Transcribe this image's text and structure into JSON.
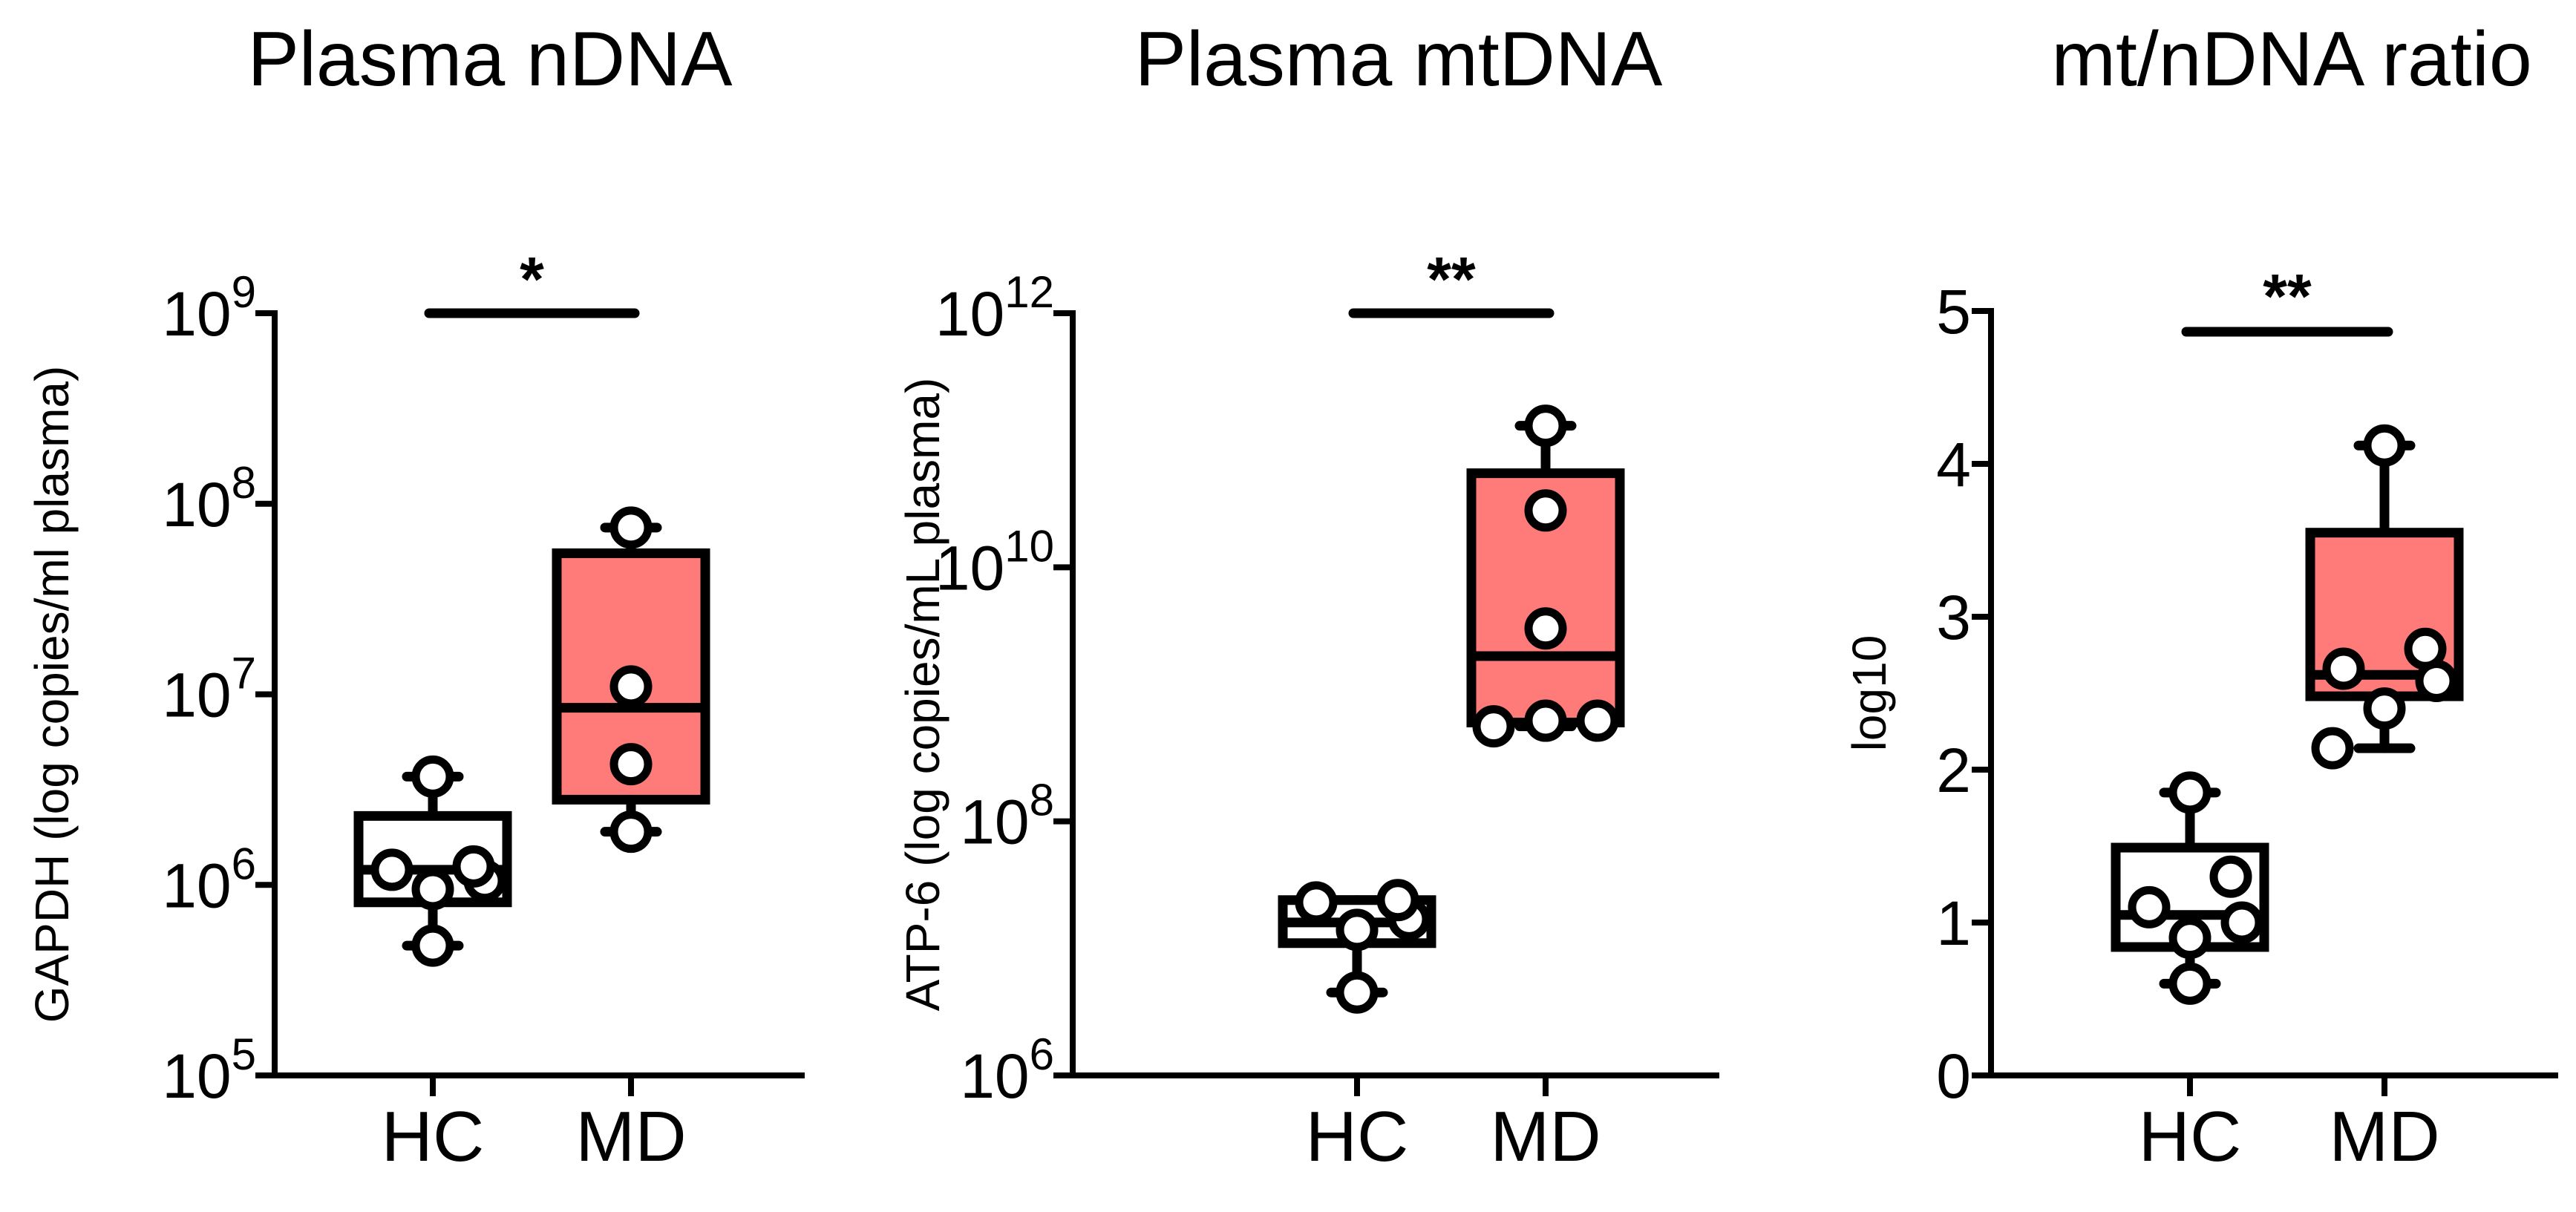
{
  "figure": {
    "colors": {
      "HC_fill": "#ffffff",
      "MD_fill": "#fe7b79",
      "stroke": "#000000",
      "point_fill": "#ffffff"
    }
  },
  "chart_data": [
    {
      "type": "box",
      "title": "Plasma nDNA",
      "ylabel": "GAPDH (log copies/ml plasma)",
      "xlabel": "",
      "yscale": "log",
      "ylim": [
        100000,
        1000000000
      ],
      "yticks": [
        {
          "value": 100000,
          "base": "10",
          "exp": "5"
        },
        {
          "value": 1000000,
          "base": "10",
          "exp": "6"
        },
        {
          "value": 10000000,
          "base": "10",
          "exp": "7"
        },
        {
          "value": 100000000,
          "base": "10",
          "exp": "8"
        },
        {
          "value": 1000000000,
          "base": "10",
          "exp": "9"
        }
      ],
      "categories": [
        "HC",
        "MD"
      ],
      "groups": [
        {
          "name": "HC",
          "min": 480000,
          "q1": 810000,
          "median": 1200000,
          "q3": 2300000,
          "max": 3700000,
          "points": [
            480000,
            950000,
            1050000,
            1200000,
            1250000,
            3700000
          ]
        },
        {
          "name": "MD",
          "min": 1900000,
          "q1": 2800000,
          "median": 8500000,
          "q3": 55000000,
          "max": 75000000,
          "points": [
            1900000,
            4300000,
            11000000,
            75000000
          ]
        }
      ],
      "significance": {
        "from": "HC",
        "to": "MD",
        "label": "*"
      }
    },
    {
      "type": "box",
      "title": "Plasma mtDNA",
      "ylabel": "ATP-6 (log copies/mL plasma)",
      "xlabel": "",
      "yscale": "log",
      "ylim": [
        1000000,
        1000000000000
      ],
      "yticks": [
        {
          "value": 1000000,
          "base": "10",
          "exp": "6"
        },
        {
          "value": 100000000,
          "base": "10",
          "exp": "8"
        },
        {
          "value": 10000000000,
          "base": "10",
          "exp": "10"
        },
        {
          "value": 1000000000000,
          "base": "10",
          "exp": "12"
        }
      ],
      "categories": [
        "HC",
        "MD"
      ],
      "groups": [
        {
          "name": "HC",
          "min": 4500000,
          "q1": 11000000,
          "median": 16000000,
          "q3": 24000000,
          "max": 24000000,
          "points": [
            4500000,
            14000000,
            17000000,
            23000000,
            24000000
          ]
        },
        {
          "name": "MD",
          "min": 560000000,
          "q1": 600000000,
          "median": 2000000000,
          "q3": 55000000000,
          "max": 130000000000,
          "points": [
            560000000,
            620000000,
            620000000,
            3300000000,
            28000000000,
            130000000000
          ]
        }
      ],
      "significance": {
        "from": "HC",
        "to": "MD",
        "label": "**"
      }
    },
    {
      "type": "box",
      "title": "mt/nDNA ratio",
      "ylabel": "log10",
      "xlabel": "",
      "yscale": "linear",
      "ylim": [
        0,
        5
      ],
      "yticks": [
        {
          "value": 0,
          "label": "0"
        },
        {
          "value": 1,
          "label": "1"
        },
        {
          "value": 2,
          "label": "2"
        },
        {
          "value": 3,
          "label": "3"
        },
        {
          "value": 4,
          "label": "4"
        },
        {
          "value": 5,
          "label": "5"
        }
      ],
      "categories": [
        "HC",
        "MD"
      ],
      "groups": [
        {
          "name": "HC",
          "min": 0.6,
          "q1": 0.84,
          "median": 1.05,
          "q3": 1.49,
          "max": 1.85,
          "points": [
            0.6,
            0.9,
            1.0,
            1.1,
            1.3,
            1.85
          ]
        },
        {
          "name": "MD",
          "min": 2.14,
          "q1": 2.48,
          "median": 2.62,
          "q3": 3.55,
          "max": 4.12,
          "points": [
            2.14,
            2.4,
            2.58,
            2.66,
            2.79,
            4.12
          ]
        }
      ],
      "significance": {
        "from": "HC",
        "to": "MD",
        "label": "**"
      }
    }
  ]
}
